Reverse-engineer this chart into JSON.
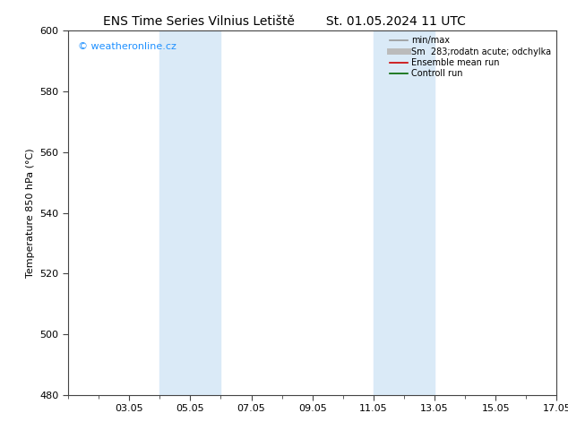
{
  "title_left": "ENS Time Series Vilnius Letiště",
  "title_right": "St. 01.05.2024 11 UTC",
  "ylabel": "Temperature 850 hPa (°C)",
  "ylim": [
    480,
    600
  ],
  "yticks": [
    480,
    500,
    520,
    540,
    560,
    580,
    600
  ],
  "xlim": [
    1.0,
    17.0
  ],
  "xtick_positions": [
    3,
    5,
    7,
    9,
    11,
    13,
    15,
    17
  ],
  "xtick_labels": [
    "03.05",
    "05.05",
    "07.05",
    "09.05",
    "11.05",
    "13.05",
    "15.05",
    "17.05"
  ],
  "shaded_regions": [
    {
      "x_start": 4.0,
      "x_end": 6.0
    },
    {
      "x_start": 11.0,
      "x_end": 13.0
    }
  ],
  "shaded_color": "#daeaf7",
  "watermark_text": "© weatheronline.cz",
  "watermark_color": "#1e90ff",
  "legend_entries": [
    {
      "label": "min/max",
      "color": "#999999",
      "lw": 1.2
    },
    {
      "label": "Sm  283;rodatn acute; odchylka",
      "color": "#bbbbbb",
      "lw": 5
    },
    {
      "label": "Ensemble mean run",
      "color": "#cc0000",
      "lw": 1.2
    },
    {
      "label": "Controll run",
      "color": "#006600",
      "lw": 1.2
    }
  ],
  "background_color": "#ffffff",
  "title_fontsize": 10,
  "label_fontsize": 8,
  "tick_fontsize": 8,
  "watermark_fontsize": 8,
  "legend_fontsize": 7
}
